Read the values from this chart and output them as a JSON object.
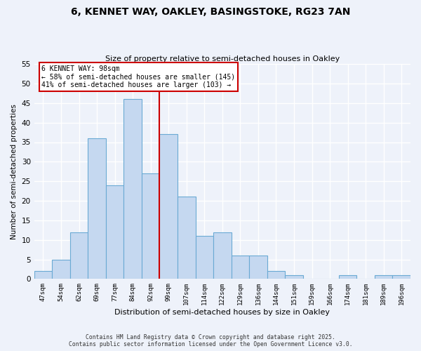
{
  "title1": "6, KENNET WAY, OAKLEY, BASINGSTOKE, RG23 7AN",
  "title2": "Size of property relative to semi-detached houses in Oakley",
  "xlabel": "Distribution of semi-detached houses by size in Oakley",
  "ylabel": "Number of semi-detached properties",
  "bar_labels": [
    "47sqm",
    "54sqm",
    "62sqm",
    "69sqm",
    "77sqm",
    "84sqm",
    "92sqm",
    "99sqm",
    "107sqm",
    "114sqm",
    "122sqm",
    "129sqm",
    "136sqm",
    "144sqm",
    "151sqm",
    "159sqm",
    "166sqm",
    "174sqm",
    "181sqm",
    "189sqm",
    "196sqm"
  ],
  "bar_values": [
    2,
    5,
    12,
    36,
    24,
    46,
    27,
    37,
    21,
    11,
    12,
    6,
    6,
    2,
    1,
    0,
    0,
    1,
    0,
    1,
    1
  ],
  "bar_color": "#c5d8f0",
  "bar_edge_color": "#6aaad4",
  "highlight_line_color": "#cc0000",
  "annotation_line1": "6 KENNET WAY: 98sqm",
  "annotation_line2": "← 58% of semi-detached houses are smaller (145)",
  "annotation_line3": "41% of semi-detached houses are larger (103) →",
  "annotation_box_color": "#ffffff",
  "annotation_box_edge": "#cc0000",
  "ylim": [
    0,
    55
  ],
  "yticks": [
    0,
    5,
    10,
    15,
    20,
    25,
    30,
    35,
    40,
    45,
    50,
    55
  ],
  "footnote1": "Contains HM Land Registry data © Crown copyright and database right 2025.",
  "footnote2": "Contains public sector information licensed under the Open Government Licence v3.0.",
  "bg_color": "#eef2fa",
  "grid_color": "#ffffff"
}
